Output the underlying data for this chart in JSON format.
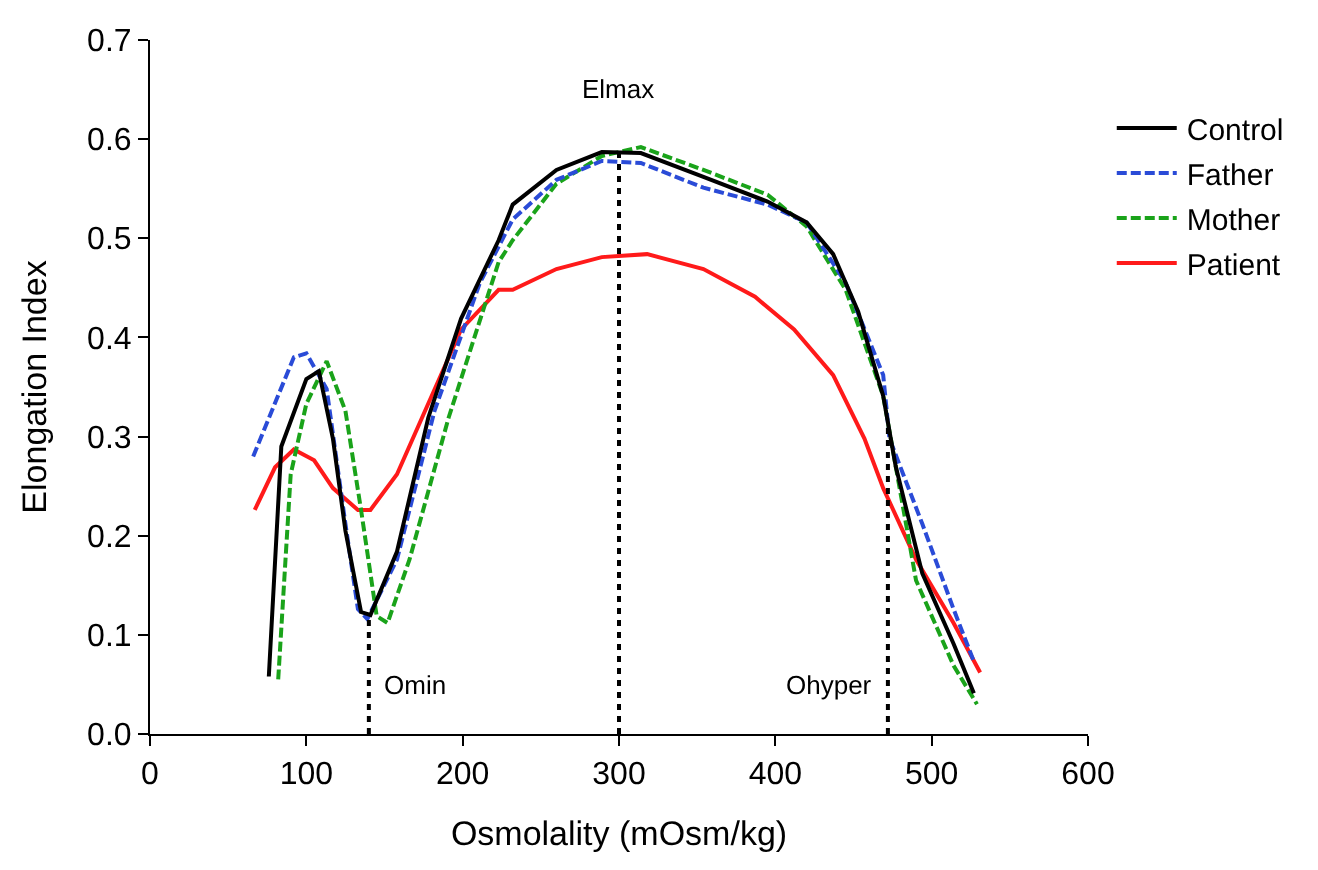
{
  "chart_data": {
    "type": "line",
    "xlabel": "Osmolality (mOsm/kg)",
    "ylabel": "Elongation Index",
    "xlim": [
      0,
      600
    ],
    "xticks": [
      0,
      100,
      200,
      300,
      400,
      500,
      600
    ],
    "ylim": [
      0,
      0.7
    ],
    "yticks": [
      {
        "value": 0,
        "label": "0.0"
      },
      0.1,
      0.2,
      0.3,
      0.4,
      0.5,
      0.6,
      0.7
    ],
    "legend": "right",
    "marker": "none",
    "series": [
      {
        "name": "Control",
        "color": "#000000",
        "line_style": "solid",
        "x": [
          76,
          84,
          100,
          108,
          117,
          125,
          135,
          141,
          158,
          178,
          199,
          223,
          232,
          260,
          289,
          314,
          354,
          395,
          420,
          437,
          453,
          469,
          477,
          494,
          514,
          527
        ],
        "values": [
          0.058,
          0.29,
          0.358,
          0.366,
          0.298,
          0.205,
          0.123,
          0.12,
          0.184,
          0.319,
          0.419,
          0.498,
          0.534,
          0.569,
          0.587,
          0.586,
          0.562,
          0.537,
          0.516,
          0.484,
          0.426,
          0.341,
          0.27,
          0.162,
          0.091,
          0.041
        ]
      },
      {
        "name": "Father",
        "color": "#2a4bd7",
        "line_style": "dashed",
        "x": [
          66,
          92,
          100,
          113,
          125,
          133,
          139,
          158,
          182,
          211,
          232,
          260,
          289,
          314,
          354,
          395,
          420,
          445,
          469,
          473,
          494,
          514,
          527
        ],
        "values": [
          0.28,
          0.38,
          0.384,
          0.348,
          0.212,
          0.126,
          0.116,
          0.176,
          0.326,
          0.455,
          0.519,
          0.559,
          0.578,
          0.576,
          0.551,
          0.534,
          0.516,
          0.455,
          0.362,
          0.298,
          0.212,
          0.126,
          0.073
        ]
      },
      {
        "name": "Mother",
        "color": "#1aa31a",
        "line_style": "dashed",
        "x": [
          82,
          90,
          100,
          113,
          125,
          135,
          145,
          152,
          166,
          191,
          223,
          232,
          260,
          289,
          314,
          354,
          395,
          420,
          445,
          469,
          490,
          514,
          529
        ],
        "values": [
          0.055,
          0.262,
          0.333,
          0.376,
          0.326,
          0.226,
          0.119,
          0.112,
          0.176,
          0.319,
          0.476,
          0.498,
          0.555,
          0.583,
          0.592,
          0.569,
          0.544,
          0.512,
          0.448,
          0.341,
          0.155,
          0.069,
          0.03
        ]
      },
      {
        "name": "Patient",
        "color": "#ff1a1a",
        "line_style": "solid",
        "x": [
          67,
          80,
          92,
          105,
          117,
          133,
          141,
          158,
          174,
          199,
          223,
          232,
          260,
          289,
          318,
          354,
          387,
          412,
          437,
          457,
          469,
          490,
          514,
          531
        ],
        "values": [
          0.226,
          0.269,
          0.287,
          0.276,
          0.248,
          0.226,
          0.226,
          0.262,
          0.319,
          0.408,
          0.448,
          0.448,
          0.469,
          0.481,
          0.484,
          0.469,
          0.441,
          0.408,
          0.362,
          0.298,
          0.248,
          0.176,
          0.112,
          0.062
        ]
      }
    ],
    "ref_lines": [
      {
        "axis": "x",
        "value": 140,
        "label": "Omin",
        "color": "#000000",
        "line_style": "dotted"
      },
      {
        "axis": "x",
        "value": 300,
        "label": "Elmax",
        "color": "#000000",
        "line_style": "dotted"
      },
      {
        "axis": "x",
        "value": 472,
        "label": "Ohyper",
        "color": "#000000",
        "line_style": "dotted"
      }
    ]
  }
}
